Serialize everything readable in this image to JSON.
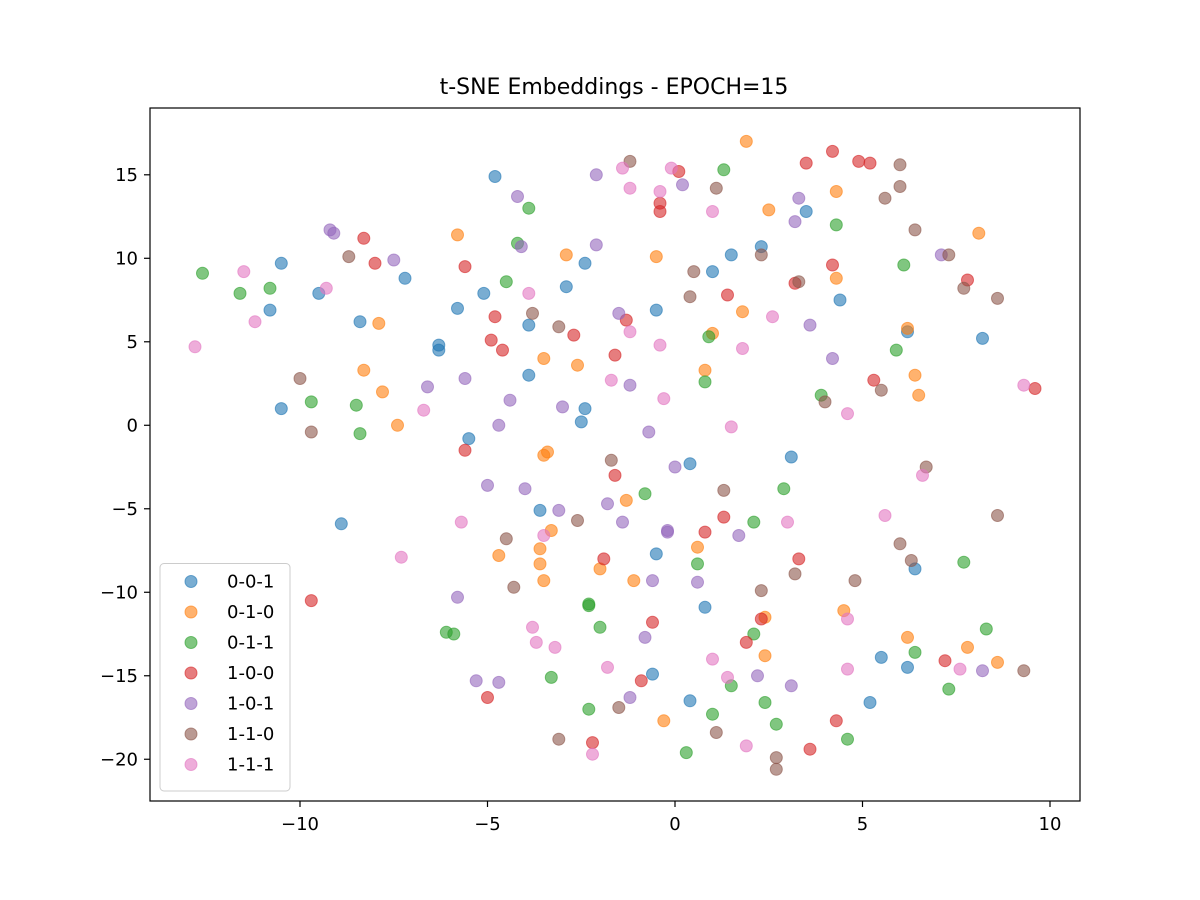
{
  "chart_data": {
    "type": "scatter",
    "title": "t-SNE Embeddings - EPOCH=15",
    "xlabel": "",
    "ylabel": "",
    "xlim": [
      -14.0,
      10.8
    ],
    "ylim": [
      -22.5,
      19.0
    ],
    "xticks": [
      -10,
      -5,
      0,
      5,
      10
    ],
    "yticks": [
      -20,
      -15,
      -10,
      -5,
      0,
      5,
      10,
      15
    ],
    "grid": false,
    "legend_position": "lower-left",
    "marker_alpha": 0.6,
    "series": [
      {
        "name": "0-0-1",
        "color": "#1f77b4",
        "points": [
          [
            -4.8,
            14.9
          ],
          [
            -10.5,
            9.7
          ],
          [
            -7.2,
            8.8
          ],
          [
            -10.8,
            6.9
          ],
          [
            -9.5,
            7.9
          ],
          [
            -8.4,
            6.2
          ],
          [
            -5.8,
            7.0
          ],
          [
            -5.1,
            7.9
          ],
          [
            -6.3,
            4.8
          ],
          [
            -6.3,
            4.5
          ],
          [
            -3.9,
            6.0
          ],
          [
            -3.9,
            3.0
          ],
          [
            -2.9,
            8.3
          ],
          [
            -2.4,
            9.7
          ],
          [
            -10.5,
            1.0
          ],
          [
            -5.5,
            -0.8
          ],
          [
            -2.4,
            1.0
          ],
          [
            -2.5,
            0.2
          ],
          [
            -0.5,
            6.9
          ],
          [
            1.0,
            9.2
          ],
          [
            1.5,
            10.2
          ],
          [
            2.3,
            10.7
          ],
          [
            3.5,
            12.8
          ],
          [
            4.4,
            7.5
          ],
          [
            6.2,
            5.6
          ],
          [
            8.2,
            5.2
          ],
          [
            3.1,
            -1.9
          ],
          [
            0.4,
            -2.3
          ],
          [
            -3.6,
            -5.1
          ],
          [
            -0.5,
            -7.7
          ],
          [
            -8.9,
            -5.9
          ],
          [
            0.8,
            -10.9
          ],
          [
            6.4,
            -8.6
          ],
          [
            -0.6,
            -14.9
          ],
          [
            0.4,
            -16.5
          ],
          [
            5.5,
            -13.9
          ],
          [
            6.2,
            -14.5
          ],
          [
            5.2,
            -16.6
          ]
        ]
      },
      {
        "name": "0-1-0",
        "color": "#ff7f0e",
        "points": [
          [
            1.9,
            17.0
          ],
          [
            -5.8,
            11.4
          ],
          [
            -2.9,
            10.2
          ],
          [
            -0.5,
            10.1
          ],
          [
            2.5,
            12.9
          ],
          [
            4.3,
            14.0
          ],
          [
            4.3,
            8.8
          ],
          [
            8.1,
            11.5
          ],
          [
            -7.9,
            6.1
          ],
          [
            1.0,
            5.5
          ],
          [
            1.8,
            6.8
          ],
          [
            6.2,
            5.8
          ],
          [
            -8.3,
            3.3
          ],
          [
            -3.5,
            4.0
          ],
          [
            -2.6,
            3.6
          ],
          [
            0.8,
            3.3
          ],
          [
            6.4,
            3.0
          ],
          [
            -7.8,
            2.0
          ],
          [
            6.5,
            1.8
          ],
          [
            -7.4,
            0.0
          ],
          [
            -3.5,
            -1.8
          ],
          [
            -3.4,
            -1.6
          ],
          [
            -1.3,
            -4.5
          ],
          [
            -3.3,
            -6.3
          ],
          [
            -4.7,
            -7.8
          ],
          [
            -3.6,
            -7.4
          ],
          [
            -3.6,
            -8.3
          ],
          [
            0.6,
            -7.3
          ],
          [
            -2.0,
            -8.6
          ],
          [
            -3.5,
            -9.3
          ],
          [
            -1.1,
            -9.3
          ],
          [
            4.5,
            -11.1
          ],
          [
            2.4,
            -11.5
          ],
          [
            2.4,
            -13.8
          ],
          [
            6.2,
            -12.7
          ],
          [
            7.8,
            -13.3
          ],
          [
            8.6,
            -14.2
          ],
          [
            -0.3,
            -17.7
          ]
        ]
      },
      {
        "name": "0-1-1",
        "color": "#2ca02c",
        "points": [
          [
            1.3,
            15.3
          ],
          [
            -3.9,
            13.0
          ],
          [
            4.3,
            12.0
          ],
          [
            -4.2,
            10.9
          ],
          [
            -12.6,
            9.1
          ],
          [
            -10.8,
            8.2
          ],
          [
            -11.6,
            7.9
          ],
          [
            -4.5,
            8.6
          ],
          [
            6.1,
            9.6
          ],
          [
            0.9,
            5.3
          ],
          [
            5.9,
            4.5
          ],
          [
            -9.7,
            1.4
          ],
          [
            -8.5,
            1.2
          ],
          [
            -8.4,
            -0.5
          ],
          [
            0.8,
            2.6
          ],
          [
            3.9,
            1.8
          ],
          [
            -0.8,
            -4.1
          ],
          [
            2.9,
            -3.8
          ],
          [
            2.1,
            -5.8
          ],
          [
            0.6,
            -8.3
          ],
          [
            7.7,
            -8.2
          ],
          [
            -2.3,
            -10.7
          ],
          [
            -2.3,
            -10.8
          ],
          [
            -6.1,
            -12.4
          ],
          [
            -5.9,
            -12.5
          ],
          [
            -2.0,
            -12.1
          ],
          [
            2.1,
            -12.5
          ],
          [
            8.3,
            -12.2
          ],
          [
            6.4,
            -13.6
          ],
          [
            -3.3,
            -15.1
          ],
          [
            1.5,
            -15.6
          ],
          [
            7.3,
            -15.8
          ],
          [
            -2.3,
            -17.0
          ],
          [
            1.0,
            -17.3
          ],
          [
            2.4,
            -16.6
          ],
          [
            2.7,
            -17.9
          ],
          [
            0.3,
            -19.6
          ],
          [
            4.6,
            -18.8
          ]
        ]
      },
      {
        "name": "1-0-0",
        "color": "#d62728",
        "points": [
          [
            4.2,
            16.4
          ],
          [
            3.5,
            15.7
          ],
          [
            4.9,
            15.8
          ],
          [
            5.2,
            15.7
          ],
          [
            0.1,
            15.2
          ],
          [
            -0.4,
            13.3
          ],
          [
            -0.4,
            12.8
          ],
          [
            -8.3,
            11.2
          ],
          [
            -8.0,
            9.7
          ],
          [
            -5.6,
            9.5
          ],
          [
            4.2,
            9.6
          ],
          [
            3.2,
            8.5
          ],
          [
            7.8,
            8.7
          ],
          [
            1.4,
            7.8
          ],
          [
            -4.8,
            6.5
          ],
          [
            -1.3,
            6.3
          ],
          [
            -2.7,
            5.4
          ],
          [
            -4.9,
            5.1
          ],
          [
            -4.6,
            4.5
          ],
          [
            -1.6,
            4.2
          ],
          [
            5.3,
            2.7
          ],
          [
            9.6,
            2.2
          ],
          [
            -5.6,
            -1.5
          ],
          [
            -1.6,
            -3.0
          ],
          [
            1.3,
            -5.5
          ],
          [
            0.8,
            -6.4
          ],
          [
            3.3,
            -8.0
          ],
          [
            -1.9,
            -8.0
          ],
          [
            -9.7,
            -10.5
          ],
          [
            2.3,
            -11.6
          ],
          [
            -0.6,
            -11.8
          ],
          [
            1.9,
            -13.0
          ],
          [
            -0.9,
            -15.3
          ],
          [
            7.2,
            -14.1
          ],
          [
            -5.0,
            -16.3
          ],
          [
            4.3,
            -17.7
          ],
          [
            -2.2,
            -19.0
          ],
          [
            3.6,
            -19.4
          ]
        ]
      },
      {
        "name": "1-0-1",
        "color": "#9467bd",
        "points": [
          [
            -2.1,
            15.0
          ],
          [
            0.2,
            14.4
          ],
          [
            -4.2,
            13.7
          ],
          [
            3.3,
            13.6
          ],
          [
            -9.2,
            11.7
          ],
          [
            -9.1,
            11.5
          ],
          [
            3.2,
            12.2
          ],
          [
            -2.1,
            10.8
          ],
          [
            -4.1,
            10.7
          ],
          [
            -7.5,
            9.9
          ],
          [
            7.1,
            10.2
          ],
          [
            -1.5,
            6.7
          ],
          [
            3.6,
            6.0
          ],
          [
            4.2,
            4.0
          ],
          [
            -5.6,
            2.8
          ],
          [
            -6.6,
            2.3
          ],
          [
            -1.2,
            2.4
          ],
          [
            -4.4,
            1.5
          ],
          [
            -3.0,
            1.1
          ],
          [
            -4.7,
            0.0
          ],
          [
            -0.7,
            -0.4
          ],
          [
            0.0,
            -2.5
          ],
          [
            -5.0,
            -3.6
          ],
          [
            -4.0,
            -3.8
          ],
          [
            -1.8,
            -4.7
          ],
          [
            -3.1,
            -5.1
          ],
          [
            -1.4,
            -5.8
          ],
          [
            -0.2,
            -6.3
          ],
          [
            -0.2,
            -6.4
          ],
          [
            1.7,
            -6.6
          ],
          [
            -0.6,
            -9.3
          ],
          [
            0.6,
            -9.4
          ],
          [
            -5.8,
            -10.3
          ],
          [
            -0.8,
            -12.7
          ],
          [
            2.2,
            -15.0
          ],
          [
            -5.3,
            -15.3
          ],
          [
            -4.7,
            -15.4
          ],
          [
            3.1,
            -15.6
          ],
          [
            8.2,
            -14.7
          ],
          [
            -1.2,
            -16.3
          ]
        ]
      },
      {
        "name": "1-1-0",
        "color": "#8c564b",
        "points": [
          [
            -1.2,
            15.8
          ],
          [
            6.0,
            15.6
          ],
          [
            6.0,
            14.3
          ],
          [
            1.1,
            14.2
          ],
          [
            5.6,
            13.6
          ],
          [
            6.4,
            11.7
          ],
          [
            -8.7,
            10.1
          ],
          [
            2.3,
            10.2
          ],
          [
            7.3,
            10.2
          ],
          [
            0.5,
            9.2
          ],
          [
            3.3,
            8.6
          ],
          [
            0.4,
            7.7
          ],
          [
            7.7,
            8.2
          ],
          [
            8.6,
            7.6
          ],
          [
            -3.8,
            6.7
          ],
          [
            -3.1,
            5.9
          ],
          [
            -10.0,
            2.8
          ],
          [
            5.5,
            2.1
          ],
          [
            4.0,
            1.4
          ],
          [
            -9.7,
            -0.4
          ],
          [
            6.7,
            -2.5
          ],
          [
            -1.7,
            -2.1
          ],
          [
            1.3,
            -3.9
          ],
          [
            8.6,
            -5.4
          ],
          [
            -4.5,
            -6.8
          ],
          [
            -2.6,
            -5.7
          ],
          [
            6.0,
            -7.1
          ],
          [
            6.3,
            -8.1
          ],
          [
            3.2,
            -8.9
          ],
          [
            4.8,
            -9.3
          ],
          [
            -4.3,
            -9.7
          ],
          [
            2.3,
            -9.9
          ],
          [
            9.3,
            -14.7
          ],
          [
            -1.5,
            -16.9
          ],
          [
            1.1,
            -18.4
          ],
          [
            -3.1,
            -18.8
          ],
          [
            2.7,
            -19.9
          ],
          [
            2.7,
            -20.6
          ]
        ]
      },
      {
        "name": "1-1-1",
        "color": "#e377c2",
        "points": [
          [
            -1.4,
            15.4
          ],
          [
            -0.1,
            15.4
          ],
          [
            -1.2,
            14.2
          ],
          [
            -0.4,
            14.0
          ],
          [
            1.0,
            12.8
          ],
          [
            -11.5,
            9.2
          ],
          [
            -9.3,
            8.2
          ],
          [
            -11.2,
            6.2
          ],
          [
            -3.9,
            7.9
          ],
          [
            -12.8,
            4.7
          ],
          [
            -1.2,
            5.6
          ],
          [
            2.6,
            6.5
          ],
          [
            -0.4,
            4.8
          ],
          [
            1.8,
            4.6
          ],
          [
            -1.7,
            2.7
          ],
          [
            9.3,
            2.4
          ],
          [
            -0.3,
            1.6
          ],
          [
            4.6,
            0.7
          ],
          [
            -6.7,
            0.9
          ],
          [
            1.5,
            -0.1
          ],
          [
            6.6,
            -3.0
          ],
          [
            5.6,
            -5.4
          ],
          [
            -5.7,
            -5.8
          ],
          [
            3.0,
            -5.8
          ],
          [
            -3.5,
            -6.6
          ],
          [
            -7.3,
            -7.9
          ],
          [
            4.6,
            -11.6
          ],
          [
            -3.8,
            -12.1
          ],
          [
            -3.7,
            -13.0
          ],
          [
            -3.2,
            -13.3
          ],
          [
            -1.8,
            -14.5
          ],
          [
            1.0,
            -14.0
          ],
          [
            4.6,
            -14.6
          ],
          [
            7.6,
            -14.6
          ],
          [
            1.4,
            -15.1
          ],
          [
            1.9,
            -19.2
          ],
          [
            -2.2,
            -19.7
          ]
        ]
      }
    ]
  }
}
